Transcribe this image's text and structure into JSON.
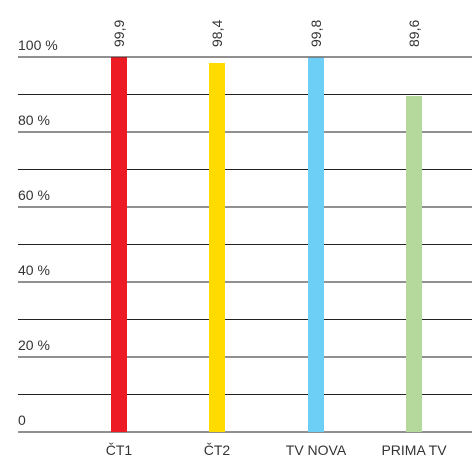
{
  "chart_data": {
    "type": "bar",
    "categories": [
      "ČT1",
      "ČT2",
      "TV NOVA",
      "PRIMA TV"
    ],
    "values": [
      99.9,
      98.4,
      99.8,
      89.6
    ],
    "value_labels": [
      "99,9",
      "98,4",
      "99,8",
      "89,6"
    ],
    "colors": [
      "#ed1c24",
      "#ffdb00",
      "#6dcff6",
      "#b5d99c"
    ],
    "ylim": [
      0,
      100
    ],
    "yticks": [
      {
        "value": 0,
        "label": "0"
      },
      {
        "value": 20,
        "label": "20 %"
      },
      {
        "value": 40,
        "label": "40 %"
      },
      {
        "value": 60,
        "label": "60 %"
      },
      {
        "value": 80,
        "label": "80 %"
      },
      {
        "value": 100,
        "label": "100 %"
      }
    ],
    "ygrid": [
      0,
      10,
      20,
      30,
      40,
      50,
      60,
      70,
      80,
      90,
      100
    ],
    "grid": true
  }
}
